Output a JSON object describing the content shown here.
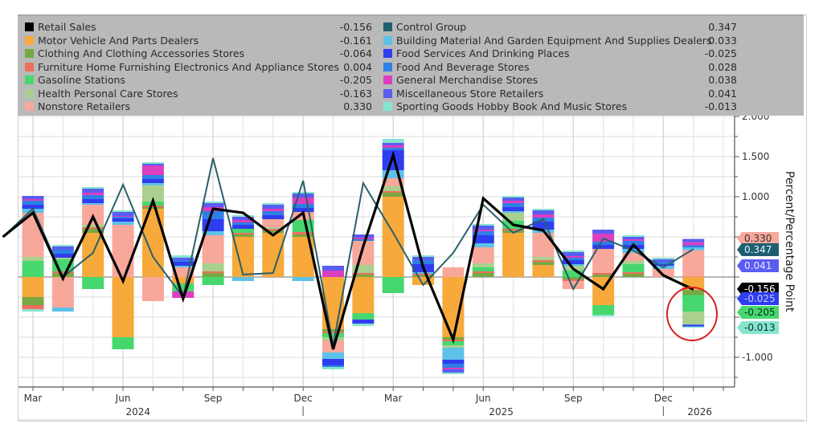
{
  "chart_data": {
    "type": "bar",
    "subtype": "stacked-bar-with-lines",
    "title": "",
    "ylabel": "Percent/Percentage Point",
    "ylim": [
      -1.1,
      2.0
    ],
    "yticks": [
      2.0,
      1.5,
      1.0,
      -1.0
    ],
    "ytick_labels": [
      "2.000",
      "1.500",
      "1.000",
      "-1.000"
    ],
    "grid": true,
    "legend_position": "top",
    "x_month_labels": [
      "Mar",
      "Jun",
      "Sep",
      "Dec",
      "Mar",
      "Jun",
      "Sep",
      "Dec",
      "2026"
    ],
    "x_year_labels": [
      "2024",
      "2025"
    ],
    "categories": [
      "2024-03",
      "2024-04",
      "2024-05",
      "2024-06",
      "2024-07",
      "2024-08",
      "2024-09",
      "2024-10",
      "2024-11",
      "2024-12",
      "2025-01",
      "2025-02",
      "2025-03",
      "2025-04",
      "2025-05",
      "2025-06",
      "2025-07",
      "2025-08",
      "2025-09",
      "2025-10",
      "2025-11",
      "2025-12",
      "2026-01"
    ],
    "lines": [
      {
        "name": "Retail Sales",
        "color": "#000000",
        "x_start": "2024-02",
        "values": [
          0.5,
          0.8,
          -0.02,
          0.75,
          -0.05,
          0.95,
          -0.27,
          0.85,
          0.8,
          0.52,
          0.8,
          -0.9,
          0.38,
          1.52,
          0.12,
          -0.78,
          0.98,
          0.65,
          0.58,
          0.1,
          -0.15,
          0.4,
          0.02,
          -0.156
        ]
      },
      {
        "name": "Control Group",
        "color": "#2a5f6a",
        "x_start": "2024-02",
        "values": [
          0.5,
          0.85,
          0.0,
          0.3,
          1.15,
          0.25,
          -0.25,
          1.48,
          0.03,
          0.05,
          1.2,
          -0.85,
          1.17,
          0.55,
          -0.1,
          0.3,
          0.9,
          0.55,
          0.72,
          -0.15,
          0.48,
          0.33,
          0.12,
          0.347
        ]
      }
    ],
    "series": [
      {
        "name": "Motor Vehicle And Parts Dealers",
        "color": "#f7a93b",
        "values": [
          -0.25,
          0.0,
          0.55,
          -0.75,
          0.85,
          -0.08,
          0.0,
          0.5,
          0.55,
          0.5,
          -0.65,
          -0.45,
          1.0,
          -0.1,
          -0.75,
          0.0,
          0.55,
          0.15,
          0.0,
          -0.35,
          0.0,
          0.0,
          -0.161
        ]
      },
      {
        "name": "Clothing And Clothing Accessories Stores",
        "color": "#77a843",
        "values": [
          -0.1,
          0.05,
          0.05,
          0.0,
          0.02,
          0.0,
          0.05,
          0.03,
          0.03,
          0.03,
          -0.03,
          0.03,
          0.05,
          0.02,
          -0.03,
          0.05,
          0.03,
          0.04,
          -0.03,
          0.03,
          0.04,
          0.0,
          -0.064
        ]
      },
      {
        "name": "Furniture Home Furnishing Electronics And Appliance Stores",
        "color": "#f06e5e",
        "values": [
          -0.05,
          0.02,
          0.02,
          0.0,
          0.02,
          0.0,
          0.02,
          0.02,
          0.02,
          0.03,
          -0.02,
          0.02,
          0.02,
          0.02,
          -0.02,
          0.02,
          0.02,
          0.02,
          -0.02,
          0.02,
          0.02,
          0.0,
          0.004
        ]
      },
      {
        "name": "Gasoline Stations",
        "color": "#46d86f",
        "values": [
          0.2,
          0.15,
          -0.15,
          -0.15,
          0.05,
          -0.1,
          -0.1,
          0.05,
          0.0,
          0.15,
          -0.05,
          -0.08,
          -0.2,
          0.0,
          -0.05,
          0.05,
          0.1,
          0.0,
          0.08,
          -0.12,
          0.1,
          0.0,
          -0.205
        ]
      },
      {
        "name": "Health Personal Care Stores",
        "color": "#a9d08e",
        "values": [
          0.05,
          0.02,
          0.03,
          0.0,
          0.2,
          0.0,
          0.1,
          0.0,
          0.02,
          0.0,
          -0.04,
          0.1,
          0.06,
          0.0,
          -0.03,
          0.05,
          0.1,
          0.04,
          0.06,
          0.0,
          0.04,
          0.0,
          -0.163
        ]
      },
      {
        "name": "Nonstore Retailers",
        "color": "#f8a79b",
        "values": [
          0.55,
          -0.38,
          0.25,
          0.65,
          -0.3,
          0.12,
          0.35,
          0.0,
          0.1,
          0.1,
          -0.15,
          0.3,
          0.1,
          0.0,
          0.12,
          0.2,
          0.0,
          0.3,
          -0.1,
          0.3,
          0.1,
          0.1,
          0.33
        ]
      },
      {
        "name": "Building Material And Garden Equipment And Supplies Dealers",
        "color": "#5ec1e8",
        "values": [
          0.05,
          -0.05,
          0.02,
          0.04,
          0.03,
          0.02,
          0.05,
          -0.05,
          0.0,
          -0.05,
          -0.08,
          0.0,
          0.1,
          0.02,
          -0.15,
          0.05,
          0.02,
          0.04,
          0.02,
          0.0,
          0.05,
          0.04,
          0.033
        ]
      },
      {
        "name": "Food Services And Drinking Places",
        "color": "#2f3df0",
        "values": [
          0.05,
          0.05,
          0.05,
          0.04,
          0.05,
          0.05,
          0.15,
          0.05,
          0.05,
          0.05,
          -0.08,
          -0.05,
          0.25,
          0.1,
          -0.05,
          0.1,
          0.05,
          0.1,
          0.05,
          0.05,
          0.05,
          0.02,
          -0.025
        ]
      },
      {
        "name": "Food And Beverage Stores",
        "color": "#2f7fe6",
        "values": [
          0.05,
          0.05,
          0.05,
          0.02,
          0.05,
          0.02,
          0.1,
          0.03,
          0.05,
          0.05,
          -0.02,
          0.02,
          0.03,
          0.05,
          -0.05,
          0.05,
          0.05,
          0.05,
          0.03,
          0.04,
          0.05,
          0.03,
          0.028
        ]
      },
      {
        "name": "General Merchandise Stores",
        "color": "#dc3ec0",
        "values": [
          0.02,
          0.0,
          0.03,
          0.01,
          0.12,
          -0.08,
          0.05,
          0.03,
          0.03,
          0.08,
          0.08,
          0.02,
          0.03,
          0.0,
          -0.02,
          0.02,
          0.03,
          0.04,
          0.02,
          0.1,
          0.02,
          0.0,
          0.038
        ]
      },
      {
        "name": "Miscellaneous Store Retailers",
        "color": "#5a5cf2",
        "values": [
          0.04,
          0.04,
          0.05,
          0.05,
          0.02,
          0.03,
          0.05,
          0.04,
          0.05,
          0.05,
          0.06,
          0.04,
          0.03,
          0.04,
          -0.04,
          0.05,
          0.04,
          0.05,
          0.05,
          0.05,
          0.03,
          0.03,
          0.041
        ]
      },
      {
        "name": "Sporting Goods Hobby Book And Music Stores",
        "color": "#86e5cf",
        "values": [
          -0.03,
          0.02,
          0.02,
          0.02,
          0.02,
          0.03,
          0.02,
          0.02,
          0.02,
          0.02,
          -0.03,
          -0.03,
          0.05,
          0.02,
          -0.02,
          0.02,
          0.02,
          0.02,
          0.02,
          -0.02,
          0.02,
          0.02,
          -0.013
        ]
      }
    ],
    "annotations": [
      {
        "type": "circle",
        "target": "2026-01",
        "color": "#d62020"
      }
    ],
    "end_tags": [
      {
        "label": "0.330",
        "bg": "#f8a79b",
        "fg": "#333333",
        "value": 0.33
      },
      {
        "label": "0.347",
        "bg": "#1d5f70",
        "fg": "#e8f4ff",
        "value": 0.347
      },
      {
        "label": "0.041",
        "bg": "#5a5cf2",
        "fg": "#e8e8ff",
        "value": 0.041
      },
      {
        "label": "-0.156",
        "bg": "#000000",
        "fg": "#ffffff",
        "value": -0.156
      },
      {
        "label": "-0.025",
        "bg": "#2f3df0",
        "fg": "#c8ccff",
        "value": -0.025
      },
      {
        "label": "-0.205",
        "bg": "#46d86f",
        "fg": "#0c3018",
        "value": -0.205
      },
      {
        "label": "-0.013",
        "bg": "#86e5cf",
        "fg": "#0c3028",
        "value": -0.013
      }
    ]
  },
  "legend": {
    "left": [
      {
        "name": "Retail Sales",
        "value": "-0.156",
        "color": "#000000"
      },
      {
        "name": "Motor Vehicle And Parts Dealers",
        "value": "-0.161",
        "color": "#f7a93b"
      },
      {
        "name": "Clothing And Clothing Accessories Stores",
        "value": "-0.064",
        "color": "#77a843"
      },
      {
        "name": "Furniture Home Furnishing Electronics And Appliance Stores",
        "value": "0.004",
        "color": "#f06e5e"
      },
      {
        "name": "Gasoline Stations",
        "value": "-0.205",
        "color": "#46d86f"
      },
      {
        "name": "Health Personal Care Stores",
        "value": "-0.163",
        "color": "#a9d08e"
      },
      {
        "name": "Nonstore Retailers",
        "value": "0.330",
        "color": "#f8a79b"
      }
    ],
    "right": [
      {
        "name": "Control Group",
        "value": "0.347",
        "color": "#1d5f70"
      },
      {
        "name": "Building Material And Garden Equipment And Supplies Dealers",
        "value": "0.033",
        "color": "#5ec1e8"
      },
      {
        "name": "Food Services And Drinking Places",
        "value": "-0.025",
        "color": "#2f3df0"
      },
      {
        "name": "Food And Beverage Stores",
        "value": "0.028",
        "color": "#2f7fe6"
      },
      {
        "name": "General Merchandise Stores",
        "value": "0.038",
        "color": "#dc3ec0"
      },
      {
        "name": "Miscellaneous Store Retailers",
        "value": "0.041",
        "color": "#5a5cf2"
      },
      {
        "name": "Sporting Goods Hobby Book And Music Stores",
        "value": "-0.013",
        "color": "#86e5cf"
      }
    ]
  }
}
